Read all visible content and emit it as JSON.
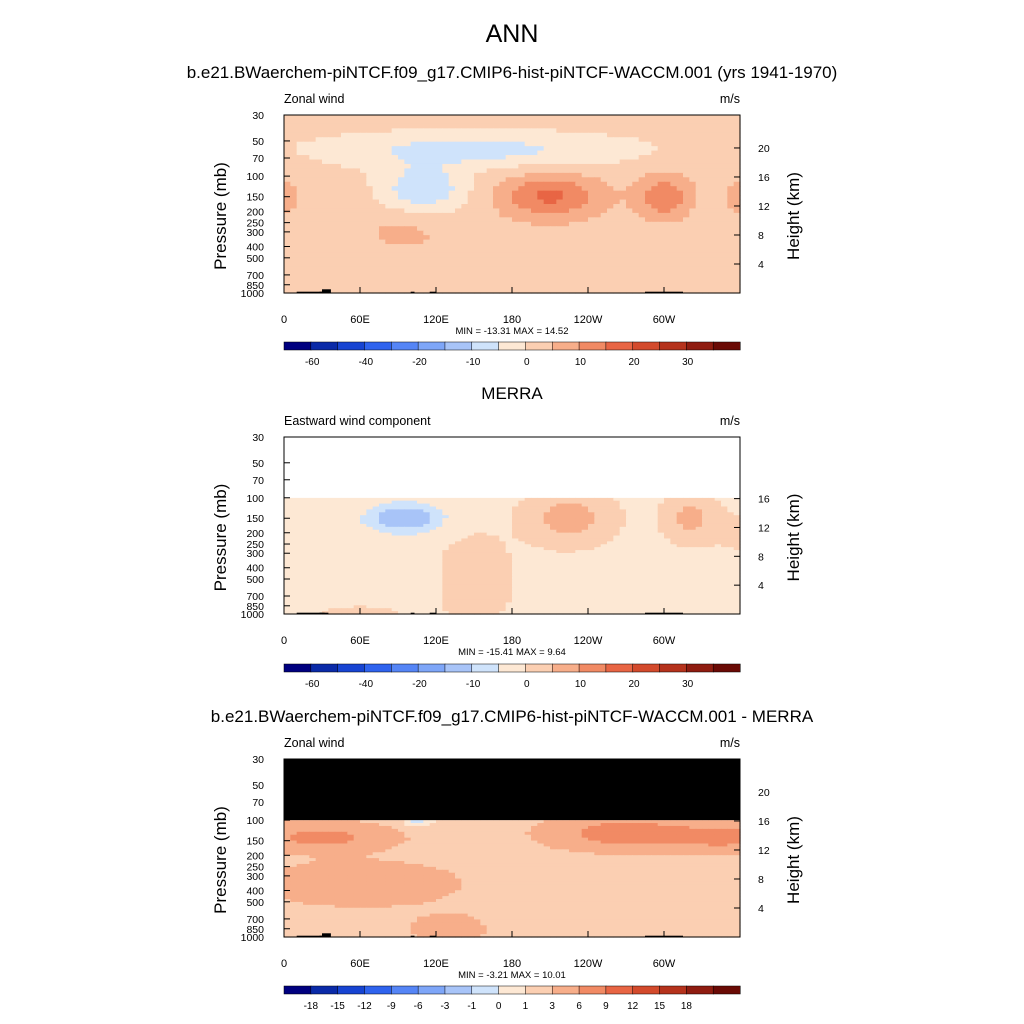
{
  "main_title": "ANN",
  "colorbar_full": {
    "colors": [
      "#00007f",
      "#0a2aa8",
      "#1744d2",
      "#2f63ee",
      "#5585f6",
      "#7ea6f8",
      "#a8c4f8",
      "#cfe3fb",
      "#fde8d4",
      "#fbcfb2",
      "#f7ae8a",
      "#f18a64",
      "#e86544",
      "#d34a2c",
      "#b5321c",
      "#8f1c10",
      "#6a0a05"
    ],
    "labels": [
      "-60",
      "-40",
      "-20",
      "-10",
      "0",
      "10",
      "20",
      "30"
    ]
  },
  "colorbar_diff": {
    "colors": [
      "#00007f",
      "#0a2aa8",
      "#1744d2",
      "#2f63ee",
      "#5585f6",
      "#7ea6f8",
      "#a8c4f8",
      "#cfe3fb",
      "#fde8d4",
      "#fbcfb2",
      "#f7ae8a",
      "#f18a64",
      "#e86544",
      "#d34a2c",
      "#b5321c",
      "#8f1c10",
      "#6a0a05"
    ],
    "labels": [
      "-18",
      "-15",
      "-12",
      "-9",
      "-6",
      "-3",
      "-1",
      "0",
      "1",
      "3",
      "6",
      "9",
      "12",
      "15",
      "18"
    ]
  },
  "chart_data": [
    {
      "type": "heatmap",
      "title": "b.e21.BWaerchem-piNTCF.f09_g17.CMIP6-hist-piNTCF-WACCM.001 (yrs 1941-1970)",
      "left_label": "Zonal wind",
      "units": "m/s",
      "ylabel": "Pressure (mb)",
      "y2label": "Height (km)",
      "xticks": [
        "0",
        "60E",
        "120E",
        "180",
        "120W",
        "60W"
      ],
      "yticks": [
        "30",
        "50",
        "70",
        "100",
        "150",
        "200",
        "250",
        "300",
        "400",
        "500",
        "700",
        "850",
        "1000"
      ],
      "y2ticks": [
        "20",
        "16",
        "12",
        "8",
        "4"
      ],
      "min_max": "MIN = -13.31  MAX =  14.52",
      "max_abs": 14.52
    },
    {
      "type": "heatmap",
      "title": "MERRA",
      "left_label": "Eastward wind component",
      "units": "m/s",
      "ylabel": "Pressure (mb)",
      "y2label": "Height (km)",
      "xticks": [
        "0",
        "60E",
        "120E",
        "180",
        "120W",
        "60W"
      ],
      "yticks": [
        "30",
        "50",
        "70",
        "100",
        "150",
        "200",
        "250",
        "300",
        "400",
        "500",
        "700",
        "850",
        "1000"
      ],
      "y2ticks": [
        "16",
        "12",
        "8",
        "4"
      ],
      "min_max": "MIN = -15.41  MAX =   9.64",
      "max_abs": 15.41
    },
    {
      "type": "heatmap",
      "title": "b.e21.BWaerchem-piNTCF.f09_g17.CMIP6-hist-piNTCF-WACCM.001 - MERRA",
      "left_label": "Zonal wind",
      "units": "m/s",
      "ylabel": "Pressure (mb)",
      "y2label": "Height (km)",
      "xticks": [
        "0",
        "60E",
        "120E",
        "180",
        "120W",
        "60W"
      ],
      "yticks": [
        "30",
        "50",
        "70",
        "100",
        "150",
        "200",
        "250",
        "300",
        "400",
        "500",
        "700",
        "850",
        "1000"
      ],
      "y2ticks": [
        "20",
        "16",
        "12",
        "8",
        "4"
      ],
      "min_max": "MIN =  -3.21  MAX =  10.01",
      "max_abs": 10.01
    }
  ]
}
